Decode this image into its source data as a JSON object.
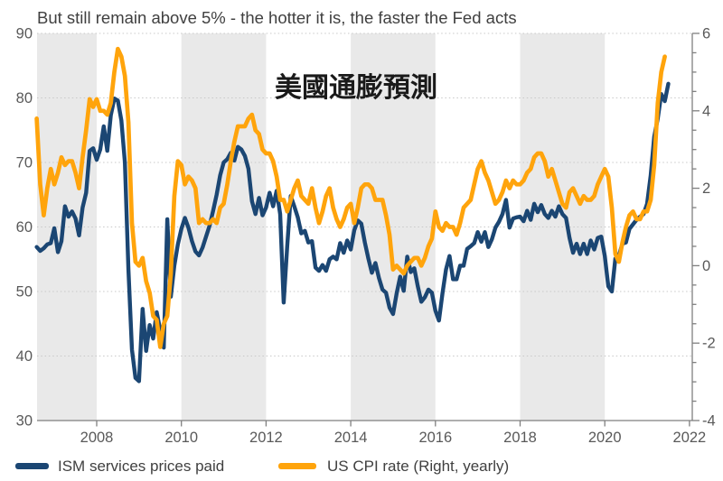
{
  "title": "But still remain above 5% - the hotter it is, the faster the Fed acts",
  "annotation": "美國通膨預測",
  "legend": [
    {
      "label": "ISM services prices paid",
      "color": "#1B4673"
    },
    {
      "label": "US CPI rate (Right, yearly)",
      "color": "#FFA40C"
    }
  ],
  "colors": {
    "band": "#E9E9E9",
    "grid": "#C9C9C9",
    "axis": "#7F7F7F",
    "title_text": "#404040",
    "tick_text": "#595959",
    "annotation_text": "#1A1A1A"
  },
  "chart_data": {
    "type": "line",
    "title": "But still remain above 5% - the hotter it is, the faster the Fed acts",
    "annotation": "美國通膨預測",
    "x_start": 2006.5833,
    "x_step": 0.0833333,
    "x_axis": {
      "ticks": [
        2008,
        2010,
        2012,
        2014,
        2016,
        2018,
        2020,
        2022
      ],
      "range": [
        2006.58,
        2022.1
      ]
    },
    "y_left": {
      "label_side": "left",
      "ticks": [
        30,
        40,
        50,
        60,
        70,
        80,
        90
      ],
      "range": [
        30,
        90
      ],
      "grid": [
        40,
        50,
        60,
        70,
        80,
        90
      ]
    },
    "y_right": {
      "label_side": "right",
      "ticks": [
        6,
        4,
        2,
        0,
        -2,
        -4
      ],
      "minor_step": 0.5,
      "range": [
        -4,
        6
      ]
    },
    "bands": [
      [
        2006.58,
        2008
      ],
      [
        2010,
        2012
      ],
      [
        2014,
        2016
      ],
      [
        2018,
        2020
      ]
    ],
    "legend_position": "bottom",
    "series": [
      {
        "name": "ISM services prices paid",
        "axis": "left",
        "color": "#1B4673",
        "values": [
          56.9,
          56.3,
          56.7,
          57.3,
          57.5,
          59.8,
          56.1,
          57.8,
          63.2,
          61.6,
          62.4,
          61.3,
          58.7,
          63.0,
          65.3,
          71.8,
          72.2,
          70.4,
          72.0,
          75.6,
          71.8,
          77.3,
          79.9,
          79.6,
          76.5,
          70.0,
          53.4,
          41.0,
          36.6,
          36.1,
          47.3,
          40.8,
          44.8,
          42.7,
          46.8,
          44.0,
          41.3,
          61.2,
          49.2,
          54.0,
          57.3,
          59.7,
          61.4,
          59.9,
          57.8,
          56.2,
          55.6,
          56.8,
          58.5,
          60.2,
          62.5,
          65.0,
          68.0,
          70.0,
          70.5,
          71.5,
          70.3,
          72.4,
          72.0,
          71.0,
          69.0,
          64.0,
          62.0,
          64.5,
          61.8,
          63.0,
          65.3,
          63.2,
          65.6,
          62.0,
          48.3,
          57.0,
          64.8,
          63.2,
          61.5,
          59.0,
          59.4,
          57.6,
          57.8,
          53.7,
          53.2,
          54.1,
          53.2,
          55.0,
          55.4,
          55.0,
          57.5,
          56.0,
          57.9,
          56.5,
          59.5,
          61.0,
          60.5,
          57.6,
          55.1,
          52.9,
          54.4,
          52.1,
          50.3,
          49.8,
          47.5,
          46.5,
          49.7,
          52.3,
          50.1,
          55.4,
          53.0,
          53.6,
          50.8,
          48.4,
          49.1,
          50.3,
          49.8,
          47.0,
          45.5,
          49.7,
          53.4,
          55.5,
          51.9,
          51.9,
          54.0,
          54.0,
          56.6,
          57.0,
          57.5,
          59.2,
          57.7,
          59.2,
          56.9,
          58.1,
          59.9,
          60.8,
          62.0,
          64.2,
          59.9,
          61.3,
          61.5,
          61.6,
          60.9,
          62.5,
          61.1,
          63.6,
          62.3,
          63.4,
          62.0,
          61.4,
          62.5,
          61.6,
          63.2,
          62.0,
          61.4,
          58.3,
          56.0,
          57.4,
          55.8,
          57.4,
          55.8,
          57.9,
          56.5,
          58.3,
          58.5,
          55.5,
          50.8,
          50.0,
          55.1,
          55.6,
          57.4,
          57.6,
          59.7,
          60.4,
          61.1,
          61.6,
          62.0,
          63.6,
          68.0,
          74.0,
          76.8,
          80.6,
          79.5,
          82.2
        ]
      },
      {
        "name": "US CPI rate (Right, yearly)",
        "axis": "right",
        "color": "#FFA40C",
        "values": [
          3.8,
          2.1,
          1.3,
          2.0,
          2.5,
          2.1,
          2.4,
          2.8,
          2.6,
          2.7,
          2.7,
          2.4,
          2.0,
          2.8,
          3.5,
          4.3,
          4.1,
          4.3,
          4.0,
          4.0,
          3.9,
          4.2,
          5.0,
          5.6,
          5.4,
          4.9,
          3.7,
          1.1,
          0.1,
          0.0,
          0.2,
          -0.4,
          -0.7,
          -1.3,
          -1.4,
          -2.1,
          -1.5,
          -1.3,
          -0.2,
          1.8,
          2.7,
          2.6,
          2.1,
          2.3,
          2.2,
          2.0,
          1.1,
          1.2,
          1.1,
          1.1,
          1.2,
          1.1,
          1.5,
          1.6,
          2.1,
          2.7,
          3.2,
          3.6,
          3.6,
          3.6,
          3.8,
          3.9,
          3.5,
          3.4,
          3.0,
          2.9,
          2.9,
          2.7,
          2.3,
          1.7,
          1.7,
          1.4,
          1.7,
          2.0,
          2.2,
          1.8,
          1.7,
          1.6,
          2.0,
          1.5,
          1.1,
          1.4,
          1.8,
          2.0,
          1.5,
          1.2,
          1.0,
          1.2,
          1.5,
          1.6,
          1.1,
          1.5,
          2.0,
          2.1,
          2.1,
          2.0,
          1.7,
          1.7,
          1.7,
          1.3,
          0.8,
          -0.1,
          0.0,
          -0.1,
          -0.2,
          0.0,
          0.1,
          0.2,
          0.2,
          0.0,
          0.2,
          0.5,
          0.7,
          1.4,
          1.0,
          0.9,
          1.1,
          1.0,
          1.0,
          0.8,
          1.1,
          1.5,
          1.6,
          1.7,
          2.1,
          2.5,
          2.7,
          2.4,
          2.2,
          1.9,
          1.6,
          1.7,
          1.9,
          2.2,
          2.0,
          2.2,
          2.1,
          2.1,
          2.2,
          2.4,
          2.5,
          2.8,
          2.9,
          2.9,
          2.7,
          2.3,
          2.5,
          2.2,
          1.9,
          1.6,
          1.5,
          1.9,
          2.0,
          1.8,
          1.6,
          1.8,
          1.7,
          1.7,
          1.8,
          2.1,
          2.3,
          2.5,
          2.3,
          1.5,
          0.3,
          0.1,
          0.6,
          1.0,
          1.3,
          1.4,
          1.2,
          1.2,
          1.4,
          1.4,
          1.7,
          2.6,
          4.2,
          5.0,
          5.4
        ]
      }
    ]
  }
}
